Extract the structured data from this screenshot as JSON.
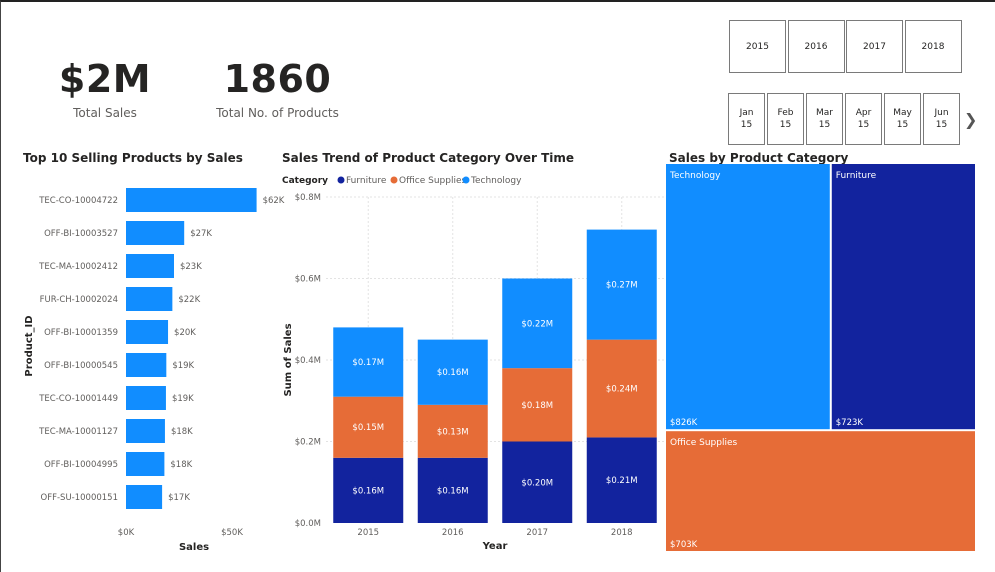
{
  "kpis": {
    "total_sales": {
      "value": "$2M",
      "label": "Total Sales"
    },
    "total_products": {
      "value": "1860",
      "label": "Total No. of Products"
    }
  },
  "year_slicer": [
    "2015",
    "2016",
    "2017",
    "2018"
  ],
  "month_slicer": [
    {
      "month": "Jan",
      "year": "15"
    },
    {
      "month": "Feb",
      "year": "15"
    },
    {
      "month": "Mar",
      "year": "15"
    },
    {
      "month": "Apr",
      "year": "15"
    },
    {
      "month": "May",
      "year": "15"
    },
    {
      "month": "Jun",
      "year": "15"
    }
  ],
  "colors": {
    "furniture": "#12239E",
    "office": "#E66C37",
    "technology": "#118DFF",
    "bar": "#118DFF"
  },
  "chart_data": [
    {
      "type": "bar",
      "orientation": "horizontal",
      "title": "Top 10 Selling Products by Sales",
      "xlabel": "Sales",
      "ylabel": "Product_ID",
      "categories": [
        "TEC-CO-10004722",
        "OFF-BI-10003527",
        "TEC-MA-10002412",
        "FUR-CH-10002024",
        "OFF-BI-10001359",
        "OFF-BI-10000545",
        "TEC-CO-10001449",
        "TEC-MA-10001127",
        "OFF-BI-10004995",
        "OFF-SU-10000151"
      ],
      "values": [
        61600,
        27450,
        22640,
        21870,
        19830,
        19020,
        18840,
        18370,
        18110,
        17030
      ],
      "data_labels": [
        "$62K",
        "$27K",
        "$23K",
        "$22K",
        "$20K",
        "$19K",
        "$19K",
        "$18K",
        "$18K",
        "$17K"
      ],
      "xlim": [
        0,
        60000
      ],
      "x_ticks": [
        0,
        50000
      ],
      "x_tick_labels": [
        "$0K",
        "$50K"
      ]
    },
    {
      "type": "bar",
      "stacked": true,
      "title": "Sales Trend of Product Category Over Time",
      "legend_title": "Category",
      "legend_position": "top-left",
      "xlabel": "Year",
      "ylabel": "Sum of Sales",
      "categories": [
        "2015",
        "2016",
        "2017",
        "2018"
      ],
      "series": [
        {
          "name": "Furniture",
          "values": [
            0.16,
            0.16,
            0.2,
            0.21
          ],
          "labels": [
            "$0.16M",
            "$0.16M",
            "$0.20M",
            "$0.21M"
          ]
        },
        {
          "name": "Office Supplies",
          "values": [
            0.15,
            0.13,
            0.18,
            0.24
          ],
          "labels": [
            "$0.15M",
            "$0.13M",
            "$0.18M",
            "$0.24M"
          ]
        },
        {
          "name": "Technology",
          "values": [
            0.17,
            0.16,
            0.22,
            0.27
          ],
          "labels": [
            "$0.17M",
            "$0.16M",
            "$0.22M",
            "$0.27M"
          ]
        }
      ],
      "ylim": [
        0,
        0.8
      ],
      "y_ticks": [
        0,
        0.2,
        0.4,
        0.6,
        0.8
      ],
      "y_tick_labels": [
        "$0.0M",
        "$0.2M",
        "$0.4M",
        "$0.6M",
        "$0.8M"
      ],
      "grid": true
    },
    {
      "type": "treemap",
      "title": "Sales by Product Category",
      "items": [
        {
          "name": "Technology",
          "value": 826,
          "label": "$826K"
        },
        {
          "name": "Furniture",
          "value": 723,
          "label": "$723K"
        },
        {
          "name": "Office Supplies",
          "value": 703,
          "label": "$703K"
        }
      ]
    }
  ]
}
